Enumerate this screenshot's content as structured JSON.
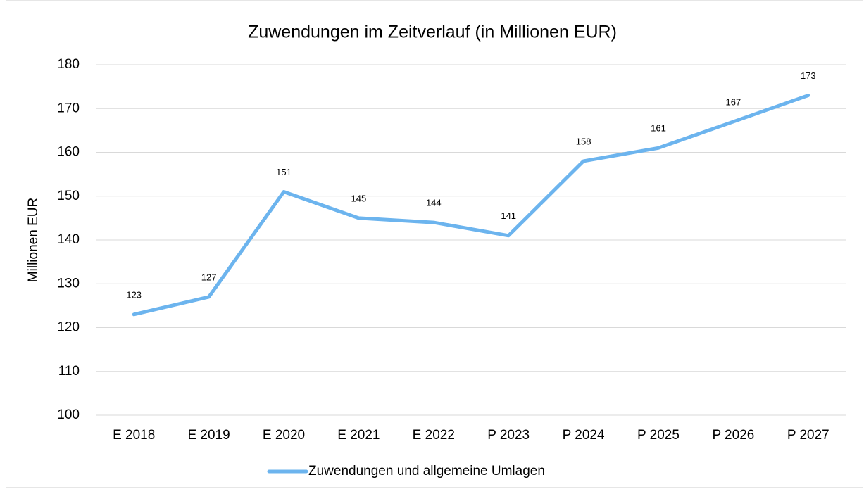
{
  "chart_data": {
    "type": "line",
    "title": "Zuwendungen im Zeitverlauf (in Millionen EUR)",
    "y_label": "Millionen EUR",
    "categories": [
      "E 2018",
      "E 2019",
      "E 2020",
      "E 2021",
      "E 2022",
      "P 2023",
      "P 2024",
      "P 2025",
      "P 2026",
      "P 2027"
    ],
    "series": [
      {
        "name": "Zuwendungen und allgemeine Umlagen",
        "color": "#6cb4ee",
        "values": [
          123,
          127,
          151,
          145,
          144,
          141,
          158,
          161,
          167,
          173
        ]
      }
    ],
    "ylim": [
      100,
      180
    ],
    "yticks": [
      100,
      110,
      120,
      130,
      140,
      150,
      160,
      170,
      180
    ],
    "grid": true,
    "legend": "bottom"
  }
}
